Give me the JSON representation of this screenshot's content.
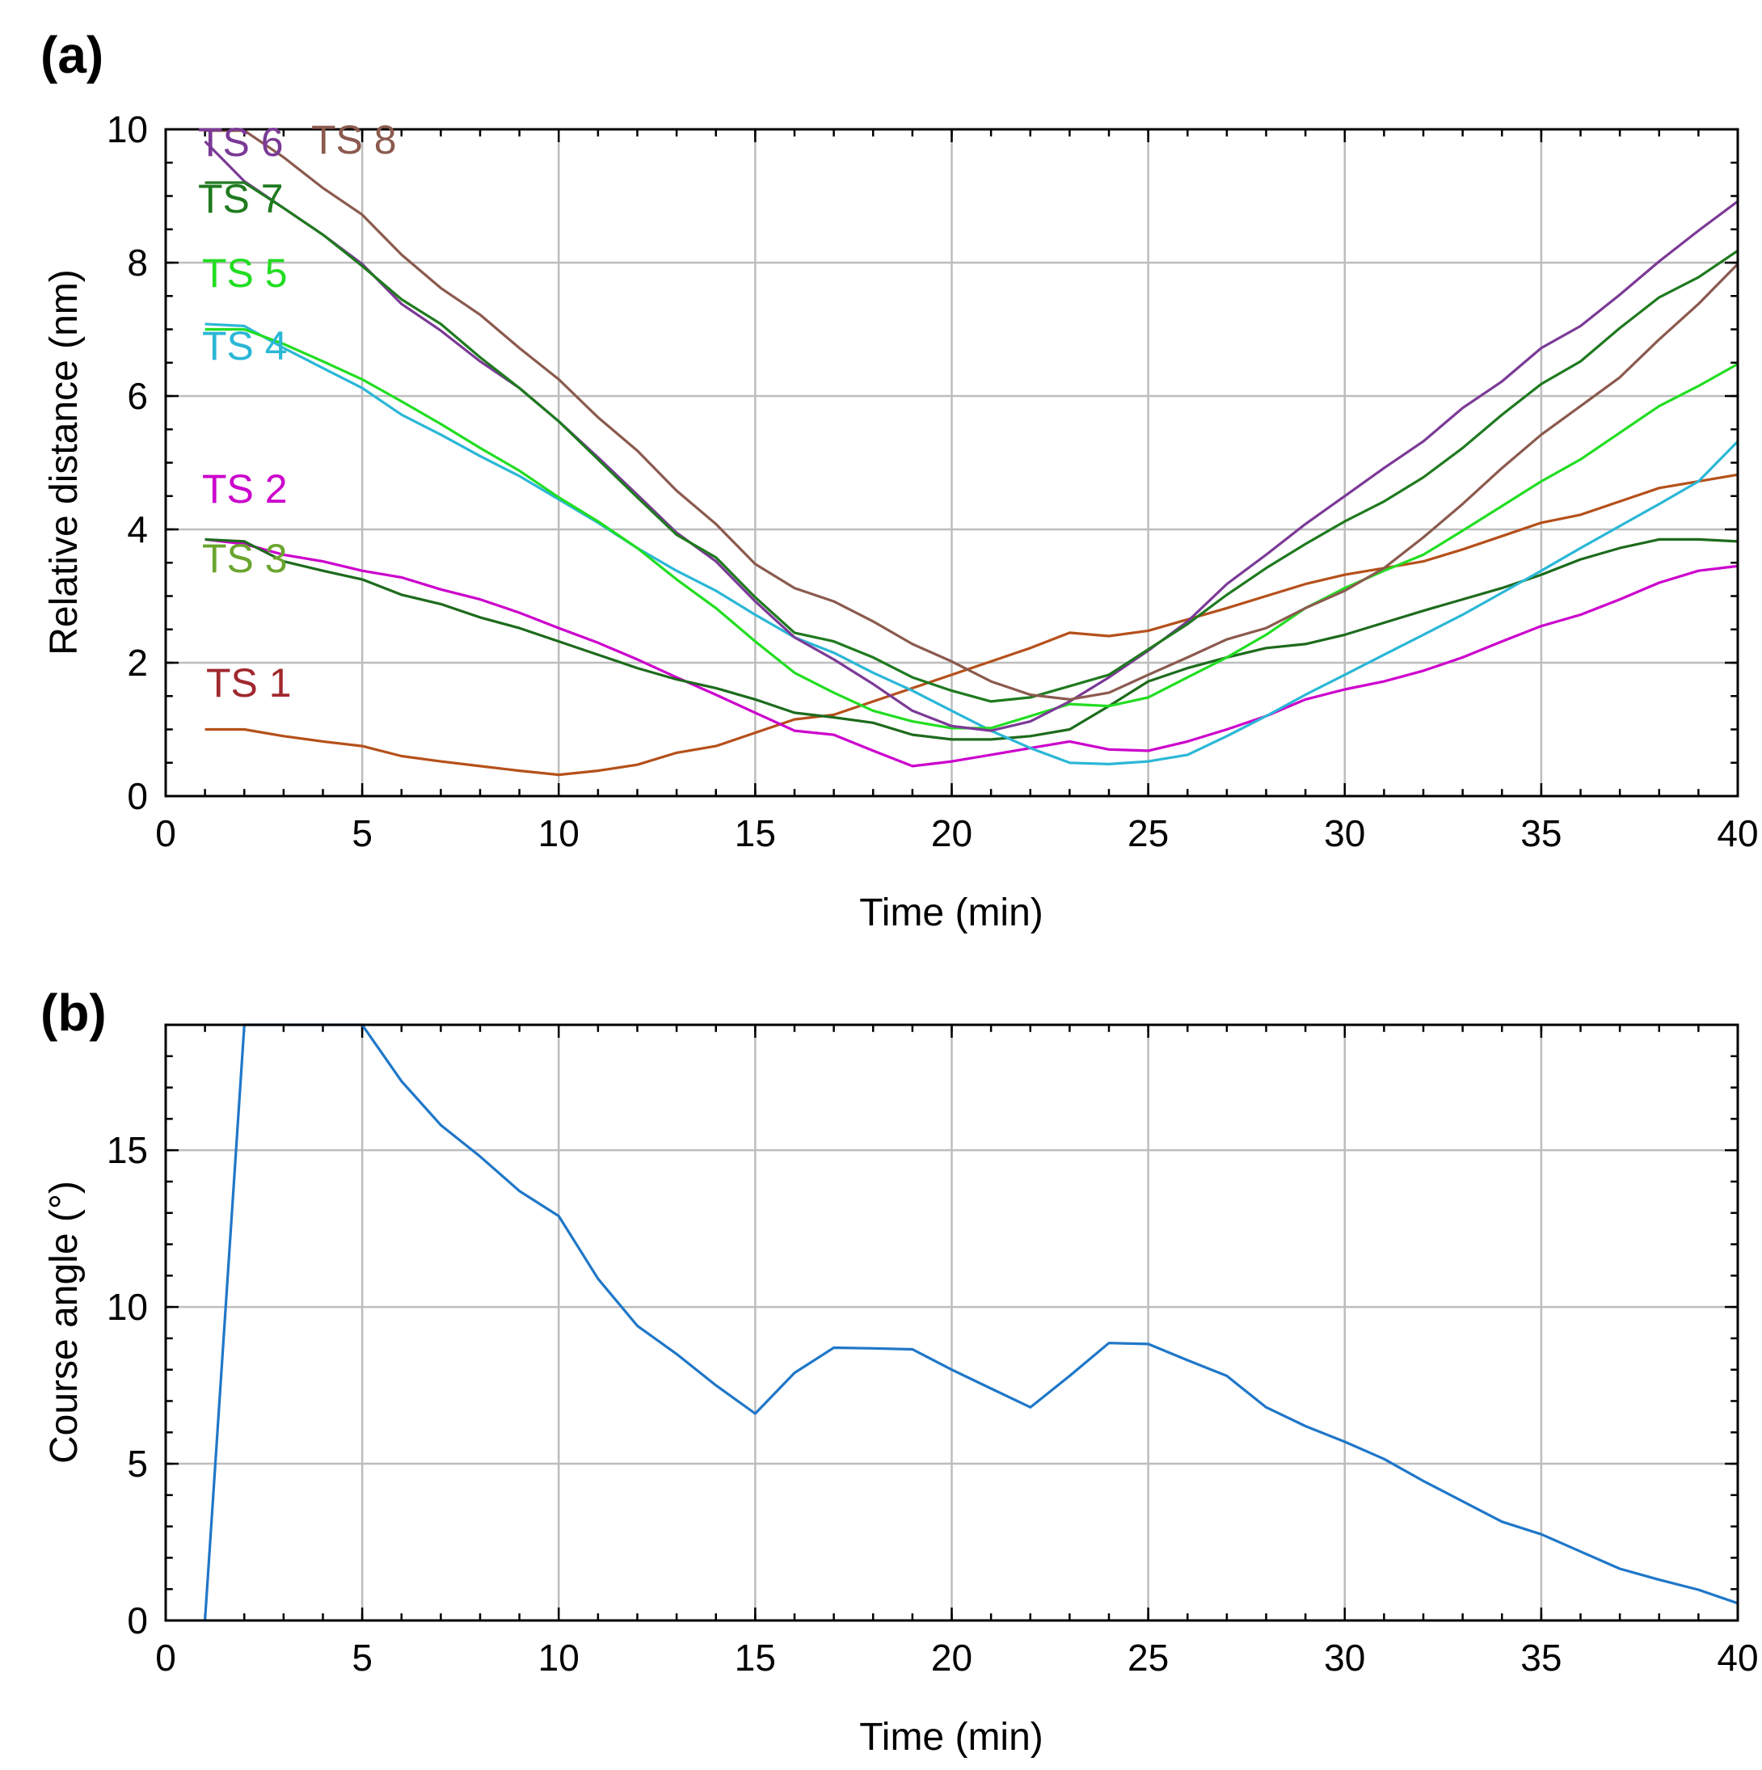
{
  "chart_data": [
    {
      "panel": "(a)",
      "type": "line",
      "xlabel": "Time (min)",
      "ylabel": "Relative distance (nm)",
      "xlim": [
        0,
        40
      ],
      "ylim": [
        0,
        10
      ],
      "xticks": [
        0,
        5,
        10,
        15,
        20,
        25,
        30,
        35,
        40
      ],
      "yticks": [
        0,
        2,
        4,
        6,
        8,
        10
      ],
      "grid": true,
      "x": [
        1,
        2,
        3,
        4,
        5,
        6,
        7,
        8,
        9,
        10,
        11,
        12,
        13,
        14,
        15,
        16,
        17,
        18,
        19,
        20,
        21,
        22,
        23,
        24,
        25,
        26,
        27,
        28,
        29,
        30,
        31,
        32,
        33,
        34,
        35,
        36,
        37,
        38,
        39,
        40
      ],
      "series": [
        {
          "name": "TS 1",
          "color": "#b5501a",
          "label_color": "#a0282e",
          "values": [
            1.0,
            1.0,
            0.9,
            0.82,
            0.75,
            0.6,
            0.52,
            0.45,
            0.38,
            0.32,
            0.38,
            0.47,
            0.65,
            0.75,
            0.95,
            1.15,
            1.22,
            1.42,
            1.62,
            1.82,
            2.02,
            2.22,
            2.45,
            2.4,
            2.48,
            2.65,
            2.82,
            3.0,
            3.18,
            3.32,
            3.42,
            3.52,
            3.7,
            3.9,
            4.1,
            4.22,
            4.42,
            4.62,
            4.72,
            4.82
          ]
        },
        {
          "name": "TS 2",
          "color": "#cc00cc",
          "label_color": "#cc00cc",
          "values": [
            3.85,
            3.78,
            3.62,
            3.52,
            3.38,
            3.28,
            3.1,
            2.95,
            2.75,
            2.52,
            2.3,
            2.05,
            1.78,
            1.52,
            1.25,
            0.98,
            0.92,
            0.68,
            0.45,
            0.52,
            0.62,
            0.72,
            0.82,
            0.7,
            0.68,
            0.82,
            1.0,
            1.2,
            1.45,
            1.6,
            1.72,
            1.88,
            2.08,
            2.32,
            2.55,
            2.72,
            2.95,
            3.2,
            3.38,
            3.45
          ]
        },
        {
          "name": "TS 3",
          "color": "#1d6b1d",
          "label_color": "#6aa52e",
          "values": [
            3.85,
            3.82,
            3.52,
            3.38,
            3.25,
            3.02,
            2.88,
            2.68,
            2.52,
            2.32,
            2.12,
            1.92,
            1.75,
            1.62,
            1.45,
            1.25,
            1.18,
            1.1,
            0.92,
            0.85,
            0.85,
            0.9,
            1.0,
            1.35,
            1.72,
            1.92,
            2.08,
            2.22,
            2.28,
            2.42,
            2.6,
            2.78,
            2.95,
            3.12,
            3.32,
            3.55,
            3.72,
            3.85,
            3.85,
            3.82
          ]
        },
        {
          "name": "TS 4",
          "color": "#2bb7d6",
          "label_color": "#2bb7d6",
          "values": [
            7.08,
            7.05,
            6.72,
            6.42,
            6.12,
            5.72,
            5.42,
            5.1,
            4.8,
            4.45,
            4.1,
            3.72,
            3.38,
            3.08,
            2.72,
            2.38,
            2.15,
            1.85,
            1.58,
            1.28,
            0.98,
            0.72,
            0.5,
            0.48,
            0.52,
            0.62,
            0.9,
            1.2,
            1.52,
            1.82,
            2.12,
            2.42,
            2.72,
            3.05,
            3.38,
            3.72,
            4.05,
            4.38,
            4.72,
            5.32
          ]
        },
        {
          "name": "TS 5",
          "color": "#22dd22",
          "label_color": "#22dd22",
          "values": [
            7.0,
            7.0,
            6.78,
            6.52,
            6.25,
            5.92,
            5.58,
            5.22,
            4.88,
            4.48,
            4.12,
            3.72,
            3.25,
            2.82,
            2.32,
            1.85,
            1.55,
            1.28,
            1.12,
            1.02,
            1.02,
            1.2,
            1.38,
            1.35,
            1.48,
            1.78,
            2.08,
            2.42,
            2.82,
            3.12,
            3.38,
            3.62,
            3.98,
            4.35,
            4.72,
            5.05,
            5.45,
            5.85,
            6.15,
            6.48
          ]
        },
        {
          "name": "TS 6",
          "color": "#7b3a96",
          "label_color": "#7b3a96",
          "values": [
            9.82,
            9.22,
            8.82,
            8.42,
            7.98,
            7.38,
            6.98,
            6.52,
            6.12,
            5.62,
            5.08,
            4.52,
            3.95,
            3.52,
            2.92,
            2.38,
            2.05,
            1.68,
            1.28,
            1.05,
            0.98,
            1.12,
            1.42,
            1.78,
            2.18,
            2.62,
            3.18,
            3.62,
            4.08,
            4.5,
            4.92,
            5.32,
            5.82,
            6.22,
            6.72,
            7.05,
            7.52,
            8.02,
            8.48,
            8.92
          ]
        },
        {
          "name": "TS 7",
          "color": "#1f7a1f",
          "label_color": "#1f7a1f",
          "values": [
            9.2,
            9.2,
            8.82,
            8.42,
            7.95,
            7.45,
            7.08,
            6.58,
            6.12,
            5.62,
            5.05,
            4.48,
            3.92,
            3.58,
            2.98,
            2.45,
            2.32,
            2.08,
            1.78,
            1.58,
            1.42,
            1.48,
            1.65,
            1.82,
            2.2,
            2.58,
            3.02,
            3.42,
            3.78,
            4.12,
            4.42,
            4.78,
            5.22,
            5.72,
            6.18,
            6.52,
            7.02,
            7.48,
            7.78,
            8.18
          ]
        },
        {
          "name": "TS 8",
          "color": "#8b5a4e",
          "label_color": "#8b5a4e",
          "values": [
            9.98,
            9.98,
            9.58,
            9.12,
            8.72,
            8.12,
            7.62,
            7.22,
            6.72,
            6.25,
            5.68,
            5.18,
            4.58,
            4.08,
            3.48,
            3.12,
            2.92,
            2.62,
            2.28,
            2.02,
            1.72,
            1.52,
            1.45,
            1.55,
            1.82,
            2.08,
            2.35,
            2.52,
            2.82,
            3.08,
            3.42,
            3.88,
            4.38,
            4.92,
            5.42,
            5.85,
            6.28,
            6.85,
            7.38,
            7.98
          ]
        }
      ]
    },
    {
      "panel": "(b)",
      "type": "line",
      "xlabel": "Time (min)",
      "ylabel": "Course angle (°)",
      "xlim": [
        0,
        40
      ],
      "ylim": [
        0,
        19
      ],
      "xticks": [
        0,
        5,
        10,
        15,
        20,
        25,
        30,
        35,
        40
      ],
      "yticks": [
        0,
        5,
        10,
        15
      ],
      "grid": true,
      "x": [
        1,
        2,
        3,
        4,
        5,
        6,
        7,
        8,
        9,
        10,
        11,
        12,
        13,
        14,
        15,
        16,
        17,
        18,
        19,
        20,
        21,
        22,
        23,
        24,
        25,
        26,
        27,
        28,
        29,
        30,
        31,
        32,
        33,
        34,
        35,
        36,
        37,
        38,
        39,
        40
      ],
      "series": [
        {
          "name": "Course angle",
          "color": "#1f77c8",
          "values": [
            0,
            19,
            19,
            19,
            19,
            17.2,
            15.8,
            14.8,
            13.7,
            12.9,
            10.9,
            9.4,
            8.5,
            7.5,
            6.6,
            7.9,
            8.7,
            8.68,
            8.65,
            8.0,
            7.4,
            6.8,
            7.8,
            8.85,
            8.82,
            8.3,
            7.8,
            6.8,
            6.2,
            5.7,
            5.15,
            4.45,
            3.8,
            3.15,
            2.75,
            2.2,
            1.65,
            1.3,
            0.98,
            0.55
          ]
        }
      ]
    }
  ]
}
